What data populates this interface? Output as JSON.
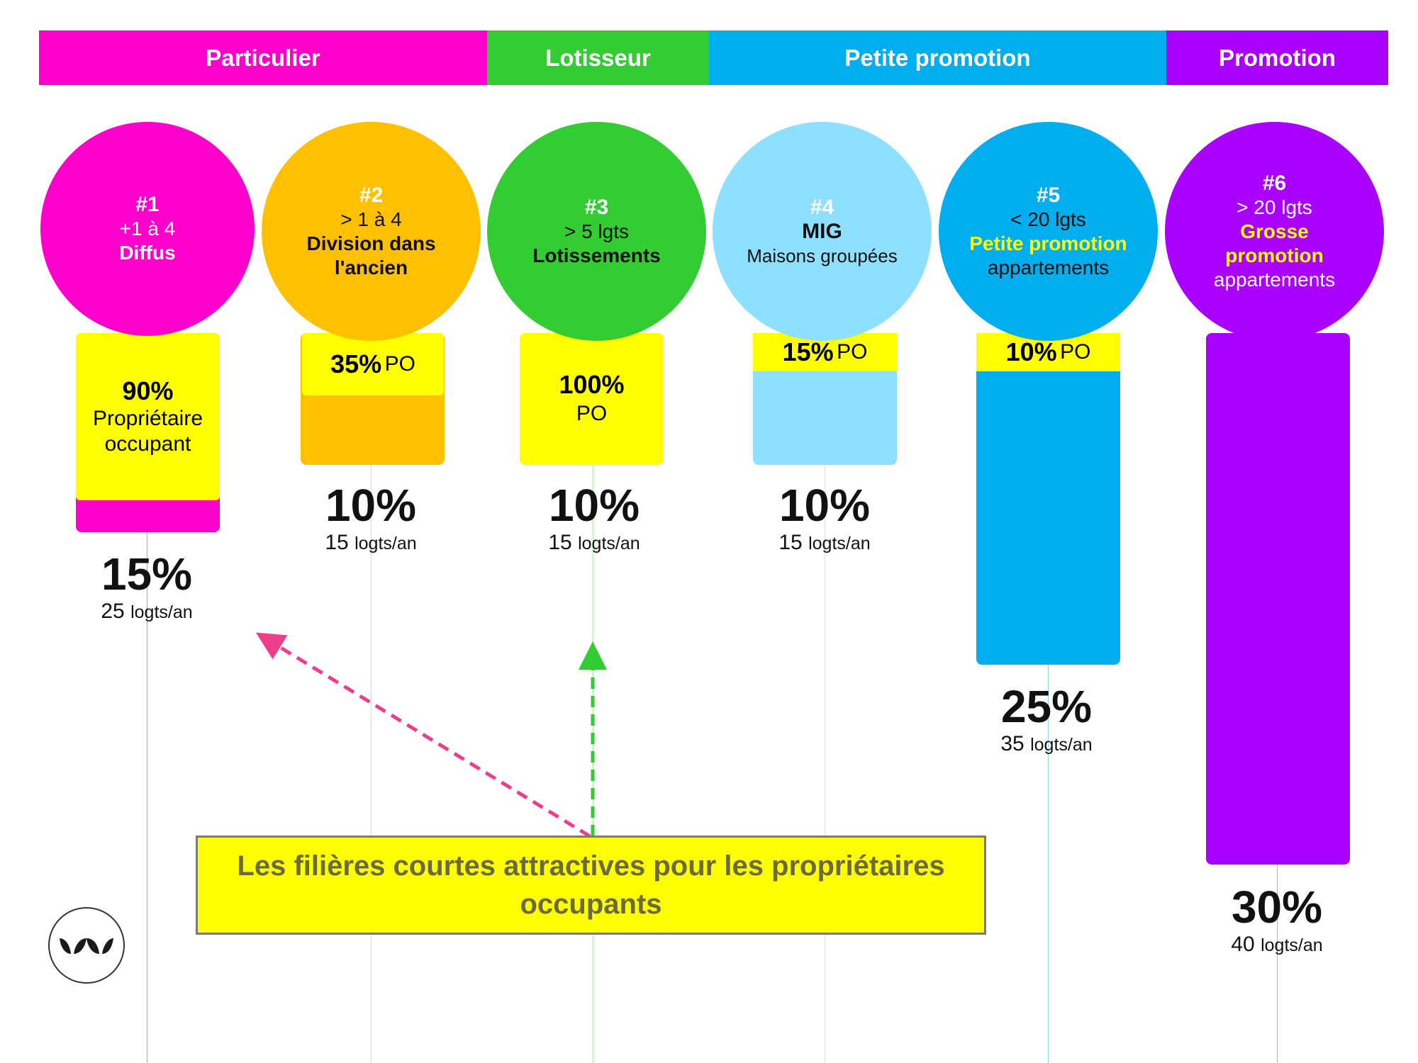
{
  "colors": {
    "particulier": "#ff00cc",
    "lotisseur": "#33cc33",
    "petite_promotion": "#00aeef",
    "promotion": "#aa00ff",
    "orange": "#ffc000",
    "light_blue": "#8fdfff",
    "yellow": "#ffff00"
  },
  "bands": [
    {
      "label": "Particulier"
    },
    {
      "label": "Lotisseur"
    },
    {
      "label": "Petite promotion"
    },
    {
      "label": "Promotion"
    }
  ],
  "categories": [
    {
      "num": "#1",
      "line1": "+1 à 4",
      "line2": "Diffus",
      "line3": "",
      "box_pct": "90%",
      "box_label_1": "Propriétaire",
      "box_label_2": "occupant",
      "share_pct": "15%",
      "units_num": "25",
      "units_label": "logts/an",
      "owner_occupied_fraction": 0.9
    },
    {
      "num": "#2",
      "line1": "> 1 à 4",
      "line2": "Division dans",
      "line3": "l'ancien",
      "box_pct": "35%",
      "box_label_1": "PO",
      "share_pct": "10%",
      "units_num": "15",
      "units_label": "logts/an",
      "owner_occupied_fraction": 0.35
    },
    {
      "num": "#3",
      "line1": "> 5 lgts",
      "line2": "Lotissements",
      "line3": "",
      "box_pct": "100%",
      "box_label_1": "PO",
      "share_pct": "10%",
      "units_num": "15",
      "units_label": "logts/an",
      "owner_occupied_fraction": 1.0
    },
    {
      "num": "#4",
      "line1": "MIG",
      "line2": "Maisons groupées",
      "line3": "",
      "box_pct": "15%",
      "box_label_1": "PO",
      "share_pct": "10%",
      "units_num": "15",
      "units_label": "logts/an",
      "owner_occupied_fraction": 0.15
    },
    {
      "num": "#5",
      "line1": "< 20 lgts",
      "line2": "Petite promotion",
      "line3": "appartements",
      "box_pct": "10%",
      "box_label_1": "PO",
      "share_pct": "25%",
      "units_num": "35",
      "units_label": "logts/an",
      "owner_occupied_fraction": 0.1
    },
    {
      "num": "#6",
      "line1": "> 20 lgts",
      "line2": "Grosse",
      "line3": "promotion",
      "line4": "appartements",
      "share_pct": "30%",
      "units_num": "40",
      "units_label": "logts/an"
    }
  ],
  "callout": {
    "line1": "Les filières courtes attractives pour les propriétaires",
    "line2": "occupants"
  }
}
